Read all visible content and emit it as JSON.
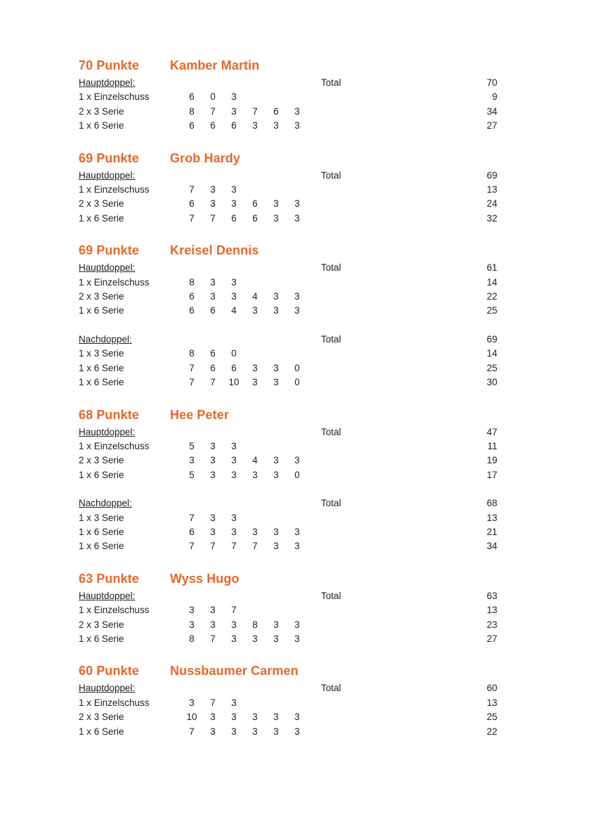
{
  "page": {
    "accent_color": "#E4682B",
    "text_color": "#212121",
    "background_color": "#FFFFFF"
  },
  "total_label": "Total",
  "sections": [
    {
      "points": "70 Punkte",
      "name": "Kamber Martin",
      "groups": [
        {
          "title": "Hauptdoppel:",
          "total": "70",
          "rows": [
            {
              "label": "1 x Einzelschuss",
              "scores": [
                "6",
                "0",
                "3"
              ],
              "sum": "9"
            },
            {
              "label": "2 x 3 Serie",
              "scores": [
                "8",
                "7",
                "3",
                "7",
                "6",
                "3"
              ],
              "sum": "34"
            },
            {
              "label": "1 x 6 Serie",
              "scores": [
                "6",
                "6",
                "6",
                "3",
                "3",
                "3"
              ],
              "sum": "27"
            }
          ]
        }
      ]
    },
    {
      "points": "69 Punkte",
      "name": "Grob Hardy",
      "groups": [
        {
          "title": "Hauptdoppel:",
          "total": "69",
          "rows": [
            {
              "label": "1 x Einzelschuss",
              "scores": [
                "7",
                "3",
                "3"
              ],
              "sum": "13"
            },
            {
              "label": "2 x 3 Serie",
              "scores": [
                "6",
                "3",
                "3",
                "6",
                "3",
                "3"
              ],
              "sum": "24"
            },
            {
              "label": "1 x 6 Serie",
              "scores": [
                "7",
                "7",
                "6",
                "6",
                "3",
                "3"
              ],
              "sum": "32"
            }
          ]
        }
      ]
    },
    {
      "points": "69 Punkte",
      "name": "Kreisel Dennis",
      "groups": [
        {
          "title": "Hauptdoppel:",
          "total": "61",
          "rows": [
            {
              "label": "1 x Einzelschuss",
              "scores": [
                "8",
                "3",
                "3"
              ],
              "sum": "14"
            },
            {
              "label": "2 x 3 Serie",
              "scores": [
                "6",
                "3",
                "3",
                "4",
                "3",
                "3"
              ],
              "sum": "22"
            },
            {
              "label": "1 x 6 Serie",
              "scores": [
                "6",
                "6",
                "4",
                "3",
                "3",
                "3"
              ],
              "sum": "25"
            }
          ]
        },
        {
          "title": "Nachdoppel:",
          "total": "69",
          "rows": [
            {
              "label": "1 x 3 Serie",
              "scores": [
                "8",
                "6",
                "0"
              ],
              "sum": "14"
            },
            {
              "label": "1 x 6 Serie",
              "scores": [
                "7",
                "6",
                "6",
                "3",
                "3",
                "0"
              ],
              "sum": "25"
            },
            {
              "label": "1 x 6 Serie",
              "scores": [
                "7",
                "7",
                "10",
                "3",
                "3",
                "0"
              ],
              "sum": "30"
            }
          ]
        }
      ]
    },
    {
      "points": "68 Punkte",
      "name": "Hee Peter",
      "groups": [
        {
          "title": "Hauptdoppel:",
          "total": "47",
          "rows": [
            {
              "label": "1 x Einzelschuss",
              "scores": [
                "5",
                "3",
                "3"
              ],
              "sum": "11"
            },
            {
              "label": "2 x 3 Serie",
              "scores": [
                "3",
                "3",
                "3",
                "4",
                "3",
                "3"
              ],
              "sum": "19"
            },
            {
              "label": "1 x 6 Serie",
              "scores": [
                "5",
                "3",
                "3",
                "3",
                "3",
                "0"
              ],
              "sum": "17"
            }
          ]
        },
        {
          "title": "Nachdoppel:",
          "total": "68",
          "rows": [
            {
              "label": "1 x 3 Serie",
              "scores": [
                "7",
                "3",
                "3"
              ],
              "sum": "13"
            },
            {
              "label": "1 x 6 Serie",
              "scores": [
                "6",
                "3",
                "3",
                "3",
                "3",
                "3"
              ],
              "sum": "21"
            },
            {
              "label": "1 x 6 Serie",
              "scores": [
                "7",
                "7",
                "7",
                "7",
                "3",
                "3"
              ],
              "sum": "34"
            }
          ]
        }
      ]
    },
    {
      "points": "63 Punkte",
      "name": "Wyss Hugo",
      "groups": [
        {
          "title": "Hauptdoppel:",
          "total": "63",
          "rows": [
            {
              "label": "1 x Einzelschuss",
              "scores": [
                "3",
                "3",
                "7"
              ],
              "sum": "13"
            },
            {
              "label": "2 x 3 Serie",
              "scores": [
                "3",
                "3",
                "3",
                "8",
                "3",
                "3"
              ],
              "sum": "23"
            },
            {
              "label": "1 x 6 Serie",
              "scores": [
                "8",
                "7",
                "3",
                "3",
                "3",
                "3"
              ],
              "sum": "27"
            }
          ]
        }
      ]
    },
    {
      "points": "60 Punkte",
      "name": "Nussbaumer Carmen",
      "groups": [
        {
          "title": "Hauptdoppel:",
          "total": "60",
          "rows": [
            {
              "label": "1 x Einzelschuss",
              "scores": [
                "3",
                "7",
                "3"
              ],
              "sum": "13"
            },
            {
              "label": "2 x 3 Serie",
              "scores": [
                "10",
                "3",
                "3",
                "3",
                "3",
                "3"
              ],
              "sum": "25"
            },
            {
              "label": "1 x 6 Serie",
              "scores": [
                "7",
                "3",
                "3",
                "3",
                "3",
                "3"
              ],
              "sum": "22"
            }
          ]
        }
      ]
    }
  ]
}
